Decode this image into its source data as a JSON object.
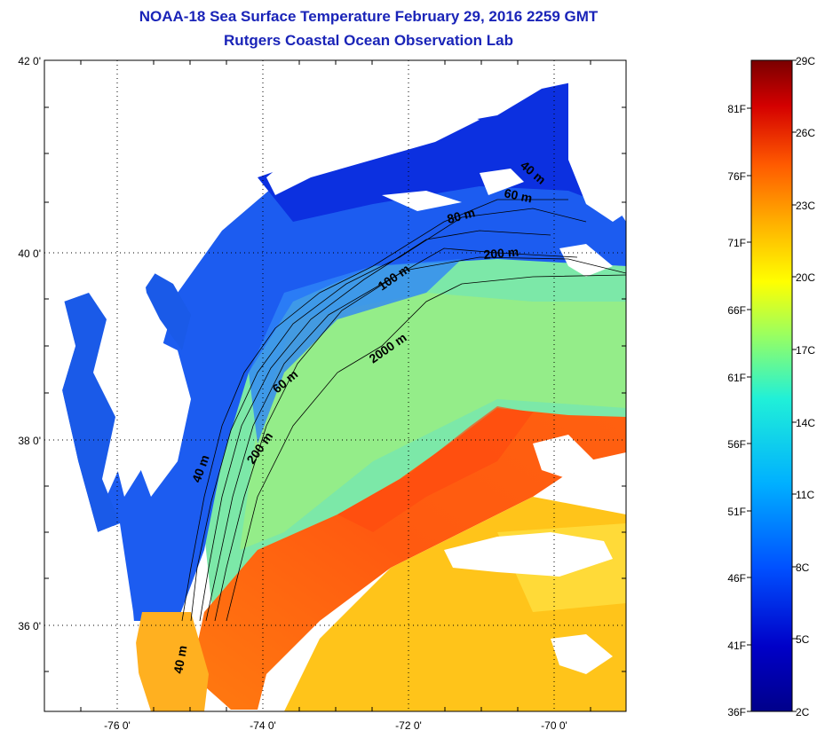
{
  "title": {
    "line1": "NOAA-18 Sea Surface Temperature February 29, 2016 2259 GMT",
    "line2": "Rutgers Coastal Ocean Observation Lab",
    "color": "#1a24b8"
  },
  "map": {
    "lat_ticks": [
      {
        "label": "42 0'",
        "value": 42
      },
      {
        "label": "40 0'",
        "value": 40
      },
      {
        "label": "38 0'",
        "value": 38
      },
      {
        "label": "36 0'",
        "value": 36
      }
    ],
    "lon_ticks": [
      {
        "label": "-76 0'",
        "value": -76
      },
      {
        "label": "-74 0'",
        "value": -74
      },
      {
        "label": "-72 0'",
        "value": -72
      },
      {
        "label": "-70 0'",
        "value": -70
      }
    ],
    "isobaths": [
      "40 m",
      "60 m",
      "80 m",
      "100 m",
      "200 m",
      "2000 m",
      "60 m",
      "40 m",
      "200 m",
      "40 m"
    ]
  },
  "colorbar": {
    "celsius": [
      "29C",
      "26C",
      "23C",
      "20C",
      "17C",
      "14C",
      "11C",
      "8C",
      "5C",
      "2C"
    ],
    "fahrenheit": [
      "81F",
      "76F",
      "71F",
      "66F",
      "61F",
      "56F",
      "51F",
      "46F",
      "41F",
      "36F"
    ],
    "colors": [
      "#7a0000",
      "#d40000",
      "#ff5a00",
      "#ffb000",
      "#ffff00",
      "#9cff5e",
      "#20f0d8",
      "#00b0ff",
      "#0050ff",
      "#0000c8",
      "#00008a"
    ]
  }
}
